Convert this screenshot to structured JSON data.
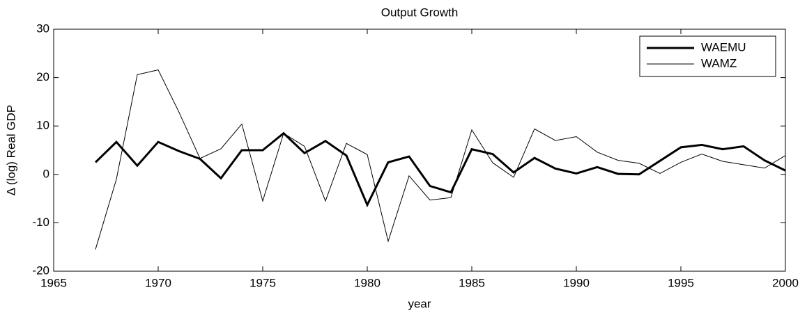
{
  "chart_data": {
    "type": "line",
    "title": "Output Growth",
    "xlabel": "year",
    "ylabel": "Δ (log) Real GDP",
    "x": [
      1967,
      1968,
      1969,
      1970,
      1971,
      1972,
      1973,
      1974,
      1975,
      1976,
      1977,
      1978,
      1979,
      1980,
      1981,
      1982,
      1983,
      1984,
      1985,
      1986,
      1987,
      1988,
      1989,
      1990,
      1991,
      1992,
      1993,
      1994,
      1995,
      1996,
      1997,
      1998,
      1999,
      2000
    ],
    "series": [
      {
        "name": "WAEMU",
        "color": "#000000",
        "linewidth": 3,
        "values": [
          2.5,
          6.7,
          1.8,
          6.7,
          4.8,
          3.2,
          -0.8,
          5.0,
          5.0,
          8.5,
          4.4,
          6.9,
          3.9,
          -6.3,
          2.5,
          3.7,
          -2.4,
          -3.7,
          5.2,
          4.2,
          0.4,
          3.4,
          1.2,
          0.2,
          1.5,
          0.1,
          0.0,
          2.8,
          5.6,
          6.1,
          5.2,
          5.8,
          2.9,
          0.8
        ]
      },
      {
        "name": "WAMZ",
        "color": "#000000",
        "linewidth": 1,
        "values": [
          -15.5,
          -1.0,
          20.6,
          21.6,
          12.8,
          3.3,
          5.3,
          10.4,
          -5.5,
          8.5,
          5.8,
          -5.5,
          6.4,
          4.1,
          -13.8,
          -0.3,
          -5.3,
          -4.8,
          9.2,
          2.4,
          -0.6,
          9.4,
          7.0,
          7.8,
          4.6,
          2.9,
          2.3,
          0.2,
          2.5,
          4.2,
          2.7,
          2.0,
          1.3,
          3.9
        ]
      }
    ],
    "xlim": [
      1965,
      2000
    ],
    "xticks": [
      1965,
      1970,
      1975,
      1980,
      1985,
      1990,
      1995,
      2000
    ],
    "ylim": [
      -20,
      30
    ],
    "yticks": [
      -20,
      -10,
      0,
      10,
      20,
      30
    ],
    "legend": "upper right",
    "grid": false
  }
}
